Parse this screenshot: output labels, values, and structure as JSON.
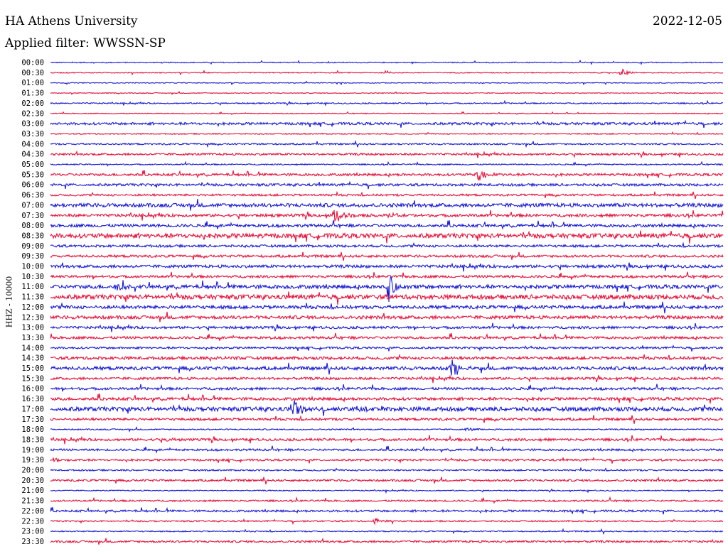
{
  "header": {
    "station": "HA Athens University",
    "date": "2022-12-05",
    "filter": "Applied filter: WWSSN-SP"
  },
  "colors": {
    "even": "#1a1ad6",
    "odd": "#e8123c",
    "text": "#000000"
  },
  "chart_data": {
    "type": "line",
    "title": "HA Athens University",
    "ylabel": "HHZ - 10000",
    "y_tick_labels": [
      "00:00",
      "00:30",
      "01:00",
      "01:30",
      "02:00",
      "02:30",
      "03:00",
      "03:30",
      "04:00",
      "04:30",
      "05:00",
      "05:30",
      "06:00",
      "06:30",
      "07:00",
      "07:30",
      "08:00",
      "08:30",
      "09:00",
      "09:30",
      "10:00",
      "10:30",
      "11:00",
      "11:30",
      "12:00",
      "12:30",
      "13:00",
      "13:30",
      "14:00",
      "14:30",
      "15:00",
      "15:30",
      "16:00",
      "16:30",
      "17:00",
      "17:30",
      "18:00",
      "18:30",
      "19:00",
      "19:30",
      "20:00",
      "20:30",
      "21:00",
      "21:30",
      "22:00",
      "22:30",
      "23:00",
      "23:30"
    ],
    "x_range_minutes": [
      0,
      30
    ],
    "events": [
      {
        "trace": "00:30",
        "minute": 25.5,
        "amp": 0.35
      },
      {
        "trace": "05:30",
        "minute": 19.1,
        "amp": 0.75
      },
      {
        "trace": "07:30",
        "minute": 12.7,
        "amp": 0.8
      },
      {
        "trace": "07:30",
        "minute": 15.1,
        "amp": 0.35
      },
      {
        "trace": "11:00",
        "minute": 2.9,
        "amp": 0.55
      },
      {
        "trace": "11:00",
        "minute": 15.1,
        "amp": 1.5
      },
      {
        "trace": "14:30",
        "minute": 7.2,
        "amp": 0.25
      },
      {
        "trace": "15:00",
        "minute": 17.9,
        "amp": 0.9
      },
      {
        "trace": "17:00",
        "minute": 10.9,
        "amp": 0.9
      },
      {
        "trace": "17:00",
        "minute": 13.7,
        "amp": 0.3
      },
      {
        "trace": "18:00",
        "minute": 18.6,
        "amp": 0.25
      },
      {
        "trace": "18:30",
        "minute": 5.3,
        "amp": 0.25
      },
      {
        "trace": "22:30",
        "minute": 14.5,
        "amp": 0.3
      },
      {
        "trace": "19:30",
        "minute": 0.2,
        "amp": 0.3
      }
    ],
    "noise": [
      0.05,
      0.05,
      0.04,
      0.04,
      0.06,
      0.04,
      0.12,
      0.06,
      0.08,
      0.1,
      0.06,
      0.12,
      0.12,
      0.1,
      0.18,
      0.14,
      0.14,
      0.22,
      0.12,
      0.12,
      0.14,
      0.12,
      0.18,
      0.22,
      0.16,
      0.16,
      0.12,
      0.12,
      0.1,
      0.14,
      0.16,
      0.12,
      0.12,
      0.14,
      0.2,
      0.12,
      0.06,
      0.12,
      0.1,
      0.1,
      0.08,
      0.1,
      0.05,
      0.08,
      0.1,
      0.07,
      0.06,
      0.1
    ],
    "grid": false
  }
}
